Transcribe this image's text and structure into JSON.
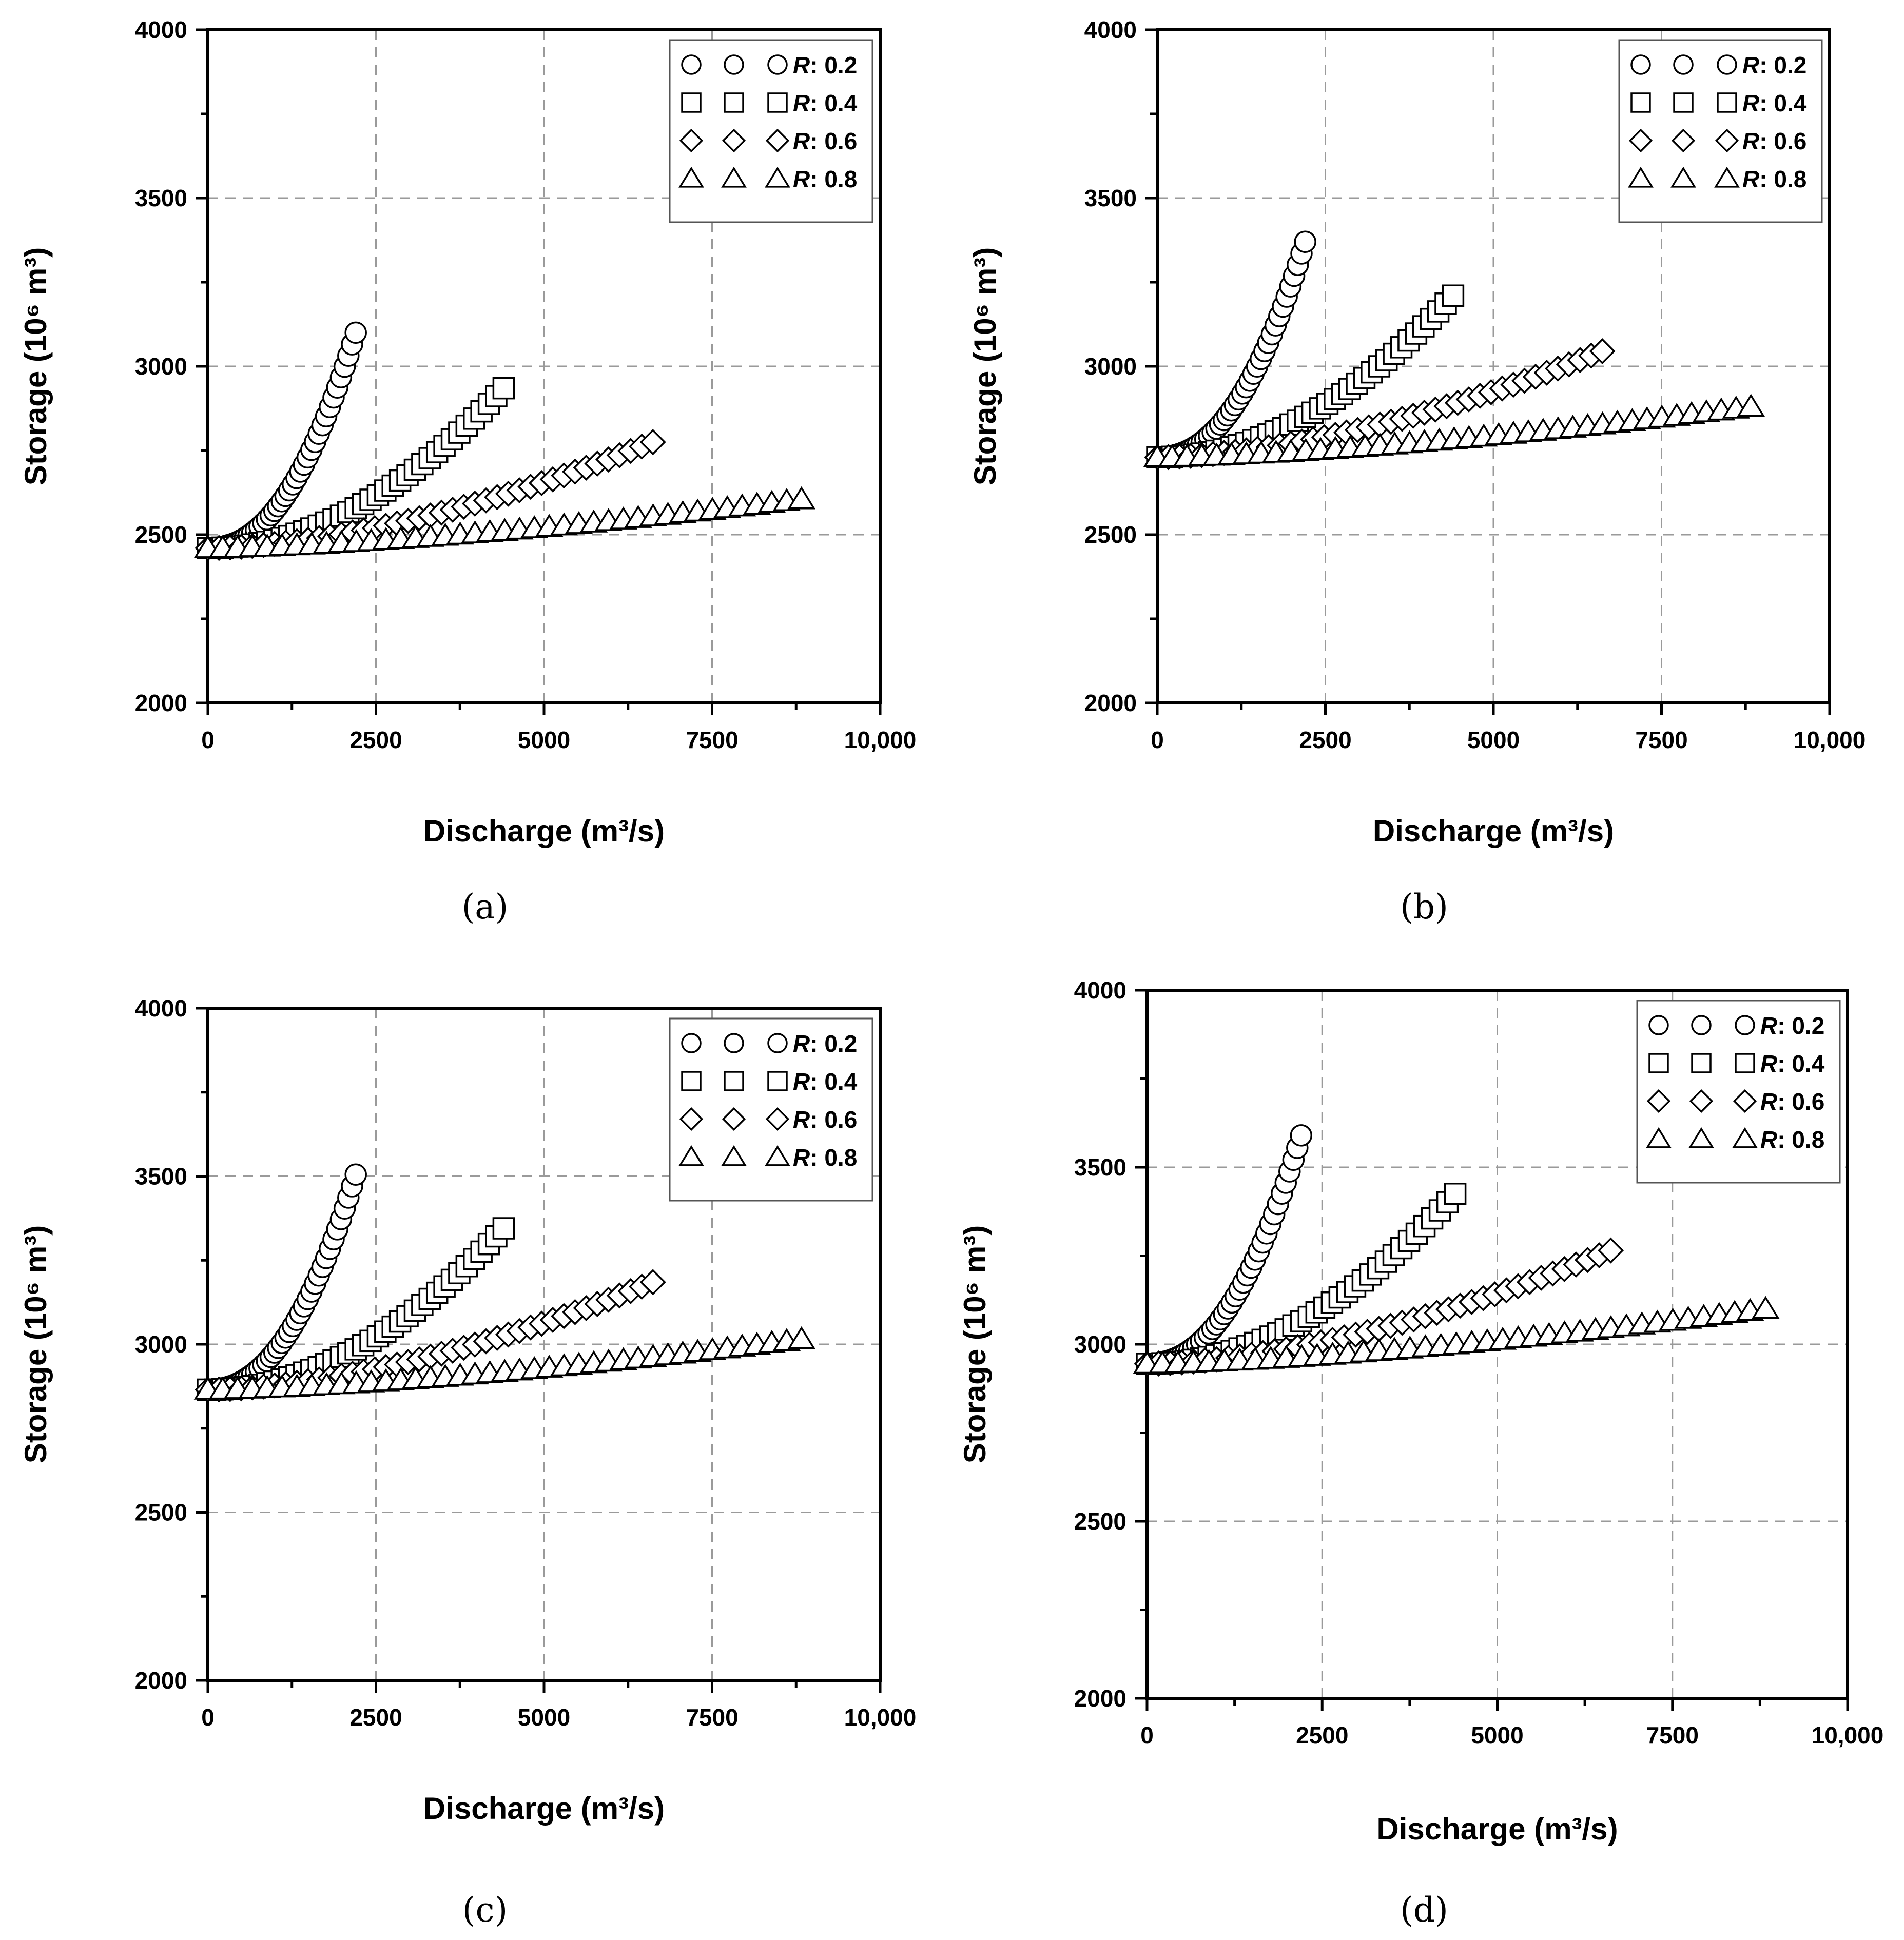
{
  "chart_data": [
    {
      "type": "scatter",
      "panel_label": "(a)",
      "xlabel": "Discharge (m³/s)",
      "ylabel": "Storage (10⁶ m³)",
      "xlim": [
        0,
        10000
      ],
      "ylim": [
        2000,
        4000
      ],
      "xticks": [
        {
          "value": 0,
          "label": "0"
        },
        {
          "value": 2500,
          "label": "2500"
        },
        {
          "value": 5000,
          "label": "5000"
        },
        {
          "value": 7500,
          "label": "7500"
        },
        {
          "value": 10000,
          "label": "10,000"
        }
      ],
      "yticks": [
        {
          "value": 2000,
          "label": "2000"
        },
        {
          "value": 2500,
          "label": "2500"
        },
        {
          "value": 3000,
          "label": "3000"
        },
        {
          "value": 3500,
          "label": "3500"
        },
        {
          "value": 4000,
          "label": "4000"
        }
      ],
      "grid": true,
      "legend_position": "top-right",
      "series": [
        {
          "name": "R: 0.2",
          "marker": "circle",
          "qmax": 2200,
          "s0": 2460,
          "smax": 3100,
          "exponent": 2.2
        },
        {
          "name": "R: 0.4",
          "marker": "square",
          "qmax": 4400,
          "s0": 2460,
          "smax": 2935,
          "exponent": 2.0
        },
        {
          "name": "R: 0.6",
          "marker": "diamond",
          "qmax": 6620,
          "s0": 2460,
          "smax": 2775,
          "exponent": 1.7
        },
        {
          "name": "R: 0.8",
          "marker": "triangle",
          "qmax": 8830,
          "s0": 2460,
          "smax": 2605,
          "exponent": 1.5
        }
      ]
    },
    {
      "type": "scatter",
      "panel_label": "(b)",
      "xlabel": "Discharge (m³/s)",
      "ylabel": "Storage (10⁶ m³)",
      "xlim": [
        0,
        10000
      ],
      "ylim": [
        2000,
        4000
      ],
      "xticks": [
        {
          "value": 0,
          "label": "0"
        },
        {
          "value": 2500,
          "label": "2500"
        },
        {
          "value": 5000,
          "label": "5000"
        },
        {
          "value": 7500,
          "label": "7500"
        },
        {
          "value": 10000,
          "label": "10,000"
        }
      ],
      "yticks": [
        {
          "value": 2000,
          "label": "2000"
        },
        {
          "value": 2500,
          "label": "2500"
        },
        {
          "value": 3000,
          "label": "3000"
        },
        {
          "value": 3500,
          "label": "3500"
        },
        {
          "value": 4000,
          "label": "4000"
        }
      ],
      "grid": true,
      "legend_position": "top-right",
      "series": [
        {
          "name": "R: 0.2",
          "marker": "circle",
          "qmax": 2200,
          "s0": 2730,
          "smax": 3370,
          "exponent": 2.2
        },
        {
          "name": "R: 0.4",
          "marker": "square",
          "qmax": 4400,
          "s0": 2730,
          "smax": 3210,
          "exponent": 2.0
        },
        {
          "name": "R: 0.6",
          "marker": "diamond",
          "qmax": 6620,
          "s0": 2730,
          "smax": 3045,
          "exponent": 1.7
        },
        {
          "name": "R: 0.8",
          "marker": "triangle",
          "qmax": 8830,
          "s0": 2730,
          "smax": 2880,
          "exponent": 1.5
        }
      ]
    },
    {
      "type": "scatter",
      "panel_label": "(c)",
      "xlabel": "Discharge (m³/s)",
      "ylabel": "Storage (10⁶ m³)",
      "xlim": [
        0,
        10000
      ],
      "ylim": [
        2000,
        4000
      ],
      "xticks": [
        {
          "value": 0,
          "label": "0"
        },
        {
          "value": 2500,
          "label": "2500"
        },
        {
          "value": 5000,
          "label": "5000"
        },
        {
          "value": 7500,
          "label": "7500"
        },
        {
          "value": 10000,
          "label": "10,000"
        }
      ],
      "yticks": [
        {
          "value": 2000,
          "label": "2000"
        },
        {
          "value": 2500,
          "label": "2500"
        },
        {
          "value": 3000,
          "label": "3000"
        },
        {
          "value": 3500,
          "label": "3500"
        },
        {
          "value": 4000,
          "label": "4000"
        }
      ],
      "grid": true,
      "legend_position": "top-right",
      "series": [
        {
          "name": "R: 0.2",
          "marker": "circle",
          "qmax": 2200,
          "s0": 2865,
          "smax": 3505,
          "exponent": 2.2
        },
        {
          "name": "R: 0.4",
          "marker": "square",
          "qmax": 4400,
          "s0": 2865,
          "smax": 3345,
          "exponent": 2.0
        },
        {
          "name": "R: 0.6",
          "marker": "diamond",
          "qmax": 6620,
          "s0": 2865,
          "smax": 3185,
          "exponent": 1.7
        },
        {
          "name": "R: 0.8",
          "marker": "triangle",
          "qmax": 8830,
          "s0": 2865,
          "smax": 3015,
          "exponent": 1.5
        }
      ]
    },
    {
      "type": "scatter",
      "panel_label": "(d)",
      "xlabel": "Discharge (m³/s)",
      "ylabel": "Storage (10⁶ m³)",
      "xlim": [
        0,
        10000
      ],
      "ylim": [
        2000,
        4000
      ],
      "xticks": [
        {
          "value": 0,
          "label": "0"
        },
        {
          "value": 2500,
          "label": "2500"
        },
        {
          "value": 5000,
          "label": "5000"
        },
        {
          "value": 7500,
          "label": "7500"
        },
        {
          "value": 10000,
          "label": "10,000"
        }
      ],
      "yticks": [
        {
          "value": 2000,
          "label": "2000"
        },
        {
          "value": 2500,
          "label": "2500"
        },
        {
          "value": 3000,
          "label": "3000"
        },
        {
          "value": 3500,
          "label": "3500"
        },
        {
          "value": 4000,
          "label": "4000"
        }
      ],
      "grid": true,
      "legend_position": "top-right",
      "series": [
        {
          "name": "R: 0.2",
          "marker": "circle",
          "qmax": 2200,
          "s0": 2945,
          "smax": 3590,
          "exponent": 2.2
        },
        {
          "name": "R: 0.4",
          "marker": "square",
          "qmax": 4400,
          "s0": 2945,
          "smax": 3425,
          "exponent": 2.0
        },
        {
          "name": "R: 0.6",
          "marker": "diamond",
          "qmax": 6620,
          "s0": 2945,
          "smax": 3265,
          "exponent": 1.7
        },
        {
          "name": "R: 0.8",
          "marker": "triangle",
          "qmax": 8830,
          "s0": 2945,
          "smax": 3100,
          "exponent": 1.5
        }
      ]
    }
  ]
}
